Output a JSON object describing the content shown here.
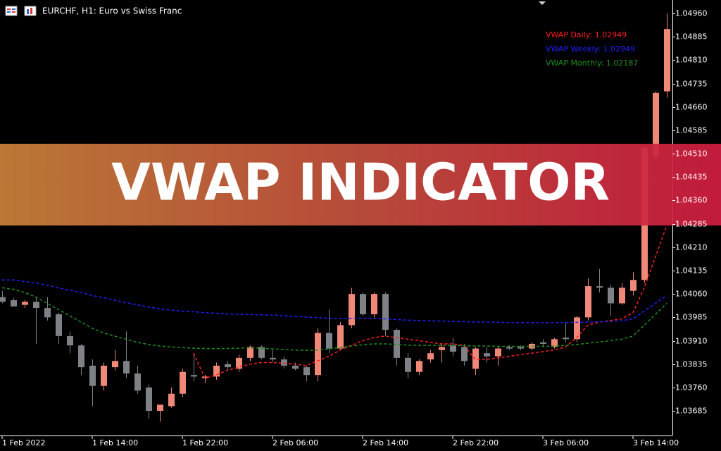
{
  "chart_data": {
    "type": "candlestick",
    "title": "EURCHF, H1:  Euro vs Swiss Franc",
    "banner": "VWAP INDICATOR",
    "up_color": "#f08878",
    "down_color": "#7e8286",
    "categories": [
      "1 Feb 2022",
      null,
      null,
      null,
      null,
      null,
      null,
      null,
      "1 Feb 14:00",
      null,
      null,
      null,
      null,
      null,
      null,
      null,
      "1 Feb 22:00",
      null,
      null,
      null,
      null,
      null,
      null,
      null,
      "2 Feb 06:00",
      null,
      null,
      null,
      null,
      null,
      null,
      null,
      "2 Feb 14:00",
      null,
      null,
      null,
      null,
      null,
      null,
      null,
      "2 Feb 22:00",
      null,
      null,
      null,
      null,
      null,
      null,
      null,
      "3 Feb 06:00",
      null,
      null,
      null,
      null,
      null,
      null,
      null,
      "3 Feb 14:00",
      null,
      null,
      null
    ],
    "open": [
      1.0405,
      1.0404,
      1.04025,
      1.04035,
      1.04015,
      1.03995,
      1.03925,
      1.03895,
      1.0383,
      1.03765,
      1.03825,
      1.03845,
      1.03805,
      1.0376,
      1.03685,
      1.037,
      1.0374,
      1.038,
      1.0379,
      1.03795,
      1.03835,
      1.0382,
      1.03855,
      1.0389,
      1.03855,
      1.0385,
      1.0383,
      1.03825,
      1.038,
      1.03935,
      1.03885,
      1.0396,
      1.0406,
      1.03995,
      1.0406,
      1.03945,
      1.03855,
      1.0381,
      1.0385,
      1.0388,
      1.03895,
      1.0389,
      1.0382,
      1.0387,
      1.0386,
      1.0389,
      1.0389,
      1.03885,
      1.03905,
      1.0389,
      1.0392,
      1.03915,
      1.03985,
      1.04085,
      1.0408,
      1.0403,
      1.0407,
      1.04105,
      1.045,
      1.0471
    ],
    "high": [
      1.0407,
      1.04048,
      1.0404,
      1.0405,
      1.0405,
      1.04,
      1.0394,
      1.039,
      1.0385,
      1.0384,
      1.0388,
      1.0394,
      1.0383,
      1.0377,
      1.037,
      1.0376,
      1.0382,
      1.0387,
      1.038,
      1.0384,
      1.03845,
      1.03865,
      1.03895,
      1.03895,
      1.0388,
      1.0386,
      1.0384,
      1.0383,
      1.0395,
      1.0401,
      1.0397,
      1.0408,
      1.04065,
      1.04065,
      1.04065,
      1.0395,
      1.0387,
      1.0385,
      1.0388,
      1.039,
      1.0392,
      1.039,
      1.0389,
      1.0389,
      1.0389,
      1.03895,
      1.03895,
      1.03905,
      1.03915,
      1.0392,
      1.0397,
      1.0399,
      1.0411,
      1.0414,
      1.0409,
      1.04095,
      1.0413,
      1.0453,
      1.0471,
      1.0496
    ],
    "low": [
      1.0403,
      1.0402,
      1.04015,
      1.039,
      1.03975,
      1.039,
      1.0387,
      1.038,
      1.037,
      1.0375,
      1.03815,
      1.0379,
      1.0374,
      1.0366,
      1.0365,
      1.03695,
      1.0373,
      1.0378,
      1.03775,
      1.03785,
      1.03815,
      1.0381,
      1.03845,
      1.0385,
      1.0384,
      1.0382,
      1.03815,
      1.0378,
      1.0378,
      1.0387,
      1.0388,
      1.0395,
      1.0399,
      1.03985,
      1.03925,
      1.0383,
      1.0379,
      1.038,
      1.0384,
      1.0384,
      1.0386,
      1.0383,
      1.038,
      1.0384,
      1.0383,
      1.0388,
      1.0388,
      1.0388,
      1.0389,
      1.03885,
      1.03905,
      1.03905,
      1.03975,
      1.04065,
      1.0399,
      1.04025,
      1.04055,
      1.04095,
      1.0449,
      1.0469
    ],
    "close": [
      1.04035,
      1.0402,
      1.04035,
      1.04015,
      1.03985,
      1.03925,
      1.03895,
      1.03825,
      1.03765,
      1.0383,
      1.03845,
      1.03805,
      1.0375,
      1.03685,
      1.03705,
      1.0374,
      1.0381,
      1.03795,
      1.03795,
      1.0383,
      1.03825,
      1.03855,
      1.0389,
      1.03855,
      1.0385,
      1.0383,
      1.0382,
      1.038,
      1.03935,
      1.03885,
      1.0396,
      1.0406,
      1.03995,
      1.0406,
      1.03945,
      1.03855,
      1.0381,
      1.03845,
      1.0387,
      1.0389,
      1.03875,
      1.03845,
      1.03885,
      1.0386,
      1.03885,
      1.03885,
      1.03885,
      1.039,
      1.039,
      1.03915,
      1.03915,
      1.03985,
      1.04085,
      1.0408,
      1.0403,
      1.0408,
      1.04105,
      1.0453,
      1.04705,
      1.0491
    ],
    "lines": [
      {
        "name": "VWAP Daily: 1.02949",
        "color": "#ff2020",
        "values": [
          null,
          null,
          null,
          null,
          null,
          null,
          null,
          null,
          null,
          null,
          null,
          null,
          null,
          null,
          null,
          null,
          null,
          1.0387,
          1.0379,
          1.038,
          1.03815,
          1.03825,
          1.03835,
          1.0384,
          1.0384,
          1.03838,
          1.03835,
          1.0383,
          1.03845,
          1.0386,
          1.0388,
          1.03895,
          1.0391,
          1.0392,
          1.03925,
          1.0392,
          1.03915,
          1.0391,
          1.03905,
          1.039,
          1.039,
          1.03895,
          1.0385,
          1.0385,
          1.03855,
          1.0386,
          1.03865,
          1.0387,
          1.03875,
          1.0388,
          1.0389,
          1.0392,
          1.0396,
          1.0397,
          1.03975,
          1.0398,
          1.04,
          1.0408,
          1.0418,
          1.0428
        ]
      },
      {
        "name": "VWAP Weekly: 1.02949",
        "color": "#2020ff",
        "values": [
          1.04105,
          1.04105,
          1.041,
          1.04095,
          1.04088,
          1.0408,
          1.04072,
          1.04065,
          1.04055,
          1.04048,
          1.0404,
          1.04032,
          1.04025,
          1.04018,
          1.04012,
          1.04008,
          1.04005,
          1.04003,
          1.04,
          1.03998,
          1.03996,
          1.03995,
          1.03994,
          1.03993,
          1.03992,
          1.0399,
          1.03988,
          1.03986,
          1.03984,
          1.03982,
          1.03981,
          1.03982,
          1.03982,
          1.03982,
          1.0398,
          1.03978,
          1.03976,
          1.03975,
          1.03974,
          1.03973,
          1.03972,
          1.03971,
          1.0397,
          1.0397,
          1.03969,
          1.03968,
          1.03968,
          1.03968,
          1.03968,
          1.03968,
          1.03968,
          1.03969,
          1.0397,
          1.03971,
          1.03972,
          1.03974,
          1.0398,
          1.04005,
          1.0403,
          1.04055
        ]
      },
      {
        "name": "VWAP Monthly: 1.02187",
        "color": "#1f8f1f",
        "values": [
          1.0408,
          1.04075,
          1.04065,
          1.0405,
          1.0403,
          1.0401,
          1.0399,
          1.0397,
          1.0395,
          1.03935,
          1.03925,
          1.03915,
          1.03905,
          1.03898,
          1.03893,
          1.0389,
          1.03888,
          1.03886,
          1.03885,
          1.03885,
          1.03885,
          1.03886,
          1.03887,
          1.03886,
          1.03884,
          1.03882,
          1.0388,
          1.03879,
          1.0388,
          1.03884,
          1.03888,
          1.03893,
          1.03897,
          1.039,
          1.039,
          1.03898,
          1.03896,
          1.03895,
          1.03895,
          1.03895,
          1.03895,
          1.03894,
          1.03893,
          1.03893,
          1.03892,
          1.03892,
          1.03892,
          1.03892,
          1.03892,
          1.03893,
          1.03895,
          1.03898,
          1.03902,
          1.03906,
          1.0391,
          1.03915,
          1.03925,
          1.0396,
          1.03995,
          1.0403
        ]
      }
    ],
    "ylim": [
      1.03606,
      1.05003
    ],
    "yticks": [
      1.03685,
      {
        "value": 1.0376,
        "label": "1.03760"
      },
      1.03835,
      {
        "value": 1.0391,
        "label": "1.03910"
      },
      1.03985,
      {
        "value": 1.0406,
        "label": "1.04060"
      },
      1.04135,
      {
        "value": 1.0421,
        "label": "1.04210"
      },
      1.04285,
      {
        "value": 1.0436,
        "label": "1.04360"
      },
      1.04435,
      {
        "value": 1.0451,
        "label": "1.04510"
      },
      1.04585,
      {
        "value": 1.0466,
        "label": "1.04660"
      },
      1.04735,
      {
        "value": 1.0481,
        "label": "1.04810"
      },
      1.04885,
      {
        "value": 1.0496,
        "label": "1.04960"
      }
    ]
  }
}
